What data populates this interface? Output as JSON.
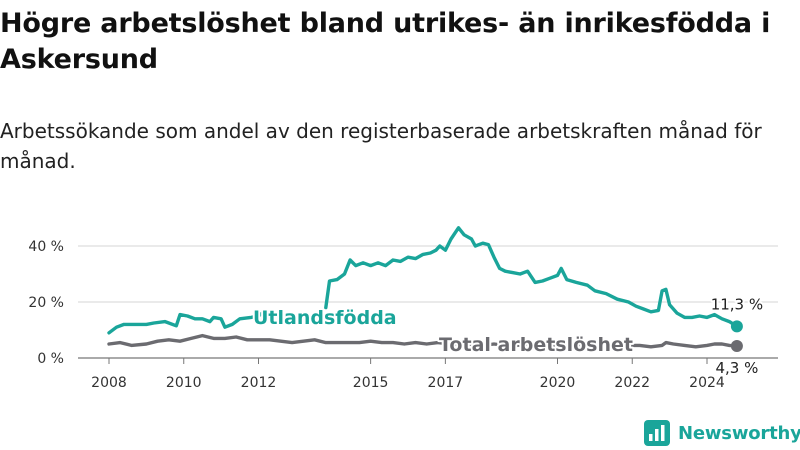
{
  "header": {
    "title": "Högre arbetslöshet bland utrikes- än inrikesfödda i Askersund",
    "subtitle": "Arbetssökande som andel av den registerbaserade arbetskraften månad för månad."
  },
  "brand": {
    "name": "Newsworthy",
    "icon": "newsworthy-logo-icon"
  },
  "chart_data": {
    "type": "line",
    "title": "Högre arbetslöshet bland utrikes- än inrikesfödda i Askersund",
    "subtitle": "Arbetssökande som andel av den registerbaserade arbetskraften månad för månad.",
    "xlabel": "",
    "ylabel": "",
    "x_ticks": [
      "2008",
      "2010",
      "2012",
      "2015",
      "2017",
      "2020",
      "2022",
      "2024"
    ],
    "y_ticks": [
      "0 %",
      "20 %",
      "40 %"
    ],
    "ylim": [
      0,
      47
    ],
    "grid": true,
    "series": [
      {
        "name": "Utlandsfödda",
        "color": "#1aa59a",
        "end_label": "11,3 %",
        "points": [
          [
            2008.0,
            9
          ],
          [
            2008.2,
            11
          ],
          [
            2008.4,
            12
          ],
          [
            2008.7,
            12
          ],
          [
            2009.0,
            12
          ],
          [
            2009.2,
            12.5
          ],
          [
            2009.5,
            13
          ],
          [
            2009.8,
            11.5
          ],
          [
            2009.9,
            15.5
          ],
          [
            2010.1,
            15
          ],
          [
            2010.3,
            14
          ],
          [
            2010.5,
            14
          ],
          [
            2010.7,
            13
          ],
          [
            2010.8,
            14.5
          ],
          [
            2011.0,
            14
          ],
          [
            2011.1,
            11
          ],
          [
            2011.3,
            12
          ],
          [
            2011.5,
            14
          ],
          [
            2011.8,
            14.5
          ],
          [
            2012.0,
            15
          ],
          [
            2012.1,
            16
          ],
          null,
          [
            2013.8,
            18
          ],
          [
            2013.9,
            27.5
          ],
          [
            2014.1,
            28
          ],
          [
            2014.3,
            30
          ],
          [
            2014.45,
            35
          ],
          [
            2014.6,
            33
          ],
          [
            2014.8,
            34
          ],
          [
            2015.0,
            33
          ],
          [
            2015.2,
            34
          ],
          [
            2015.4,
            33
          ],
          [
            2015.6,
            35
          ],
          [
            2015.8,
            34.5
          ],
          [
            2016.0,
            36
          ],
          [
            2016.2,
            35.5
          ],
          [
            2016.4,
            37
          ],
          [
            2016.6,
            37.5
          ],
          [
            2016.75,
            38.5
          ],
          [
            2016.85,
            40
          ],
          [
            2017.0,
            38.5
          ],
          [
            2017.15,
            42.5
          ],
          [
            2017.35,
            46.5
          ],
          [
            2017.5,
            44
          ],
          [
            2017.7,
            42.5
          ],
          [
            2017.8,
            40
          ],
          [
            2018.0,
            41
          ],
          [
            2018.15,
            40.5
          ],
          [
            2018.3,
            36
          ],
          [
            2018.45,
            32
          ],
          [
            2018.6,
            31
          ],
          [
            2018.8,
            30.5
          ],
          [
            2019.0,
            30
          ],
          [
            2019.2,
            31
          ],
          [
            2019.4,
            27
          ],
          [
            2019.6,
            27.5
          ],
          [
            2019.8,
            28.5
          ],
          [
            2020.0,
            29.5
          ],
          [
            2020.1,
            32
          ],
          [
            2020.25,
            28
          ],
          [
            2020.5,
            27
          ],
          [
            2020.8,
            26
          ],
          [
            2021.0,
            24
          ],
          [
            2021.3,
            23
          ],
          [
            2021.6,
            21
          ],
          [
            2021.9,
            20
          ],
          [
            2022.1,
            18.5
          ],
          [
            2022.3,
            17.5
          ],
          [
            2022.5,
            16.5
          ],
          [
            2022.7,
            17
          ],
          [
            2022.8,
            24
          ],
          [
            2022.9,
            24.5
          ],
          [
            2023.0,
            19
          ],
          [
            2023.2,
            16
          ],
          [
            2023.4,
            14.5
          ],
          [
            2023.6,
            14.5
          ],
          [
            2023.8,
            15
          ],
          [
            2024.0,
            14.5
          ],
          [
            2024.2,
            15.5
          ],
          [
            2024.4,
            14
          ],
          [
            2024.6,
            13
          ],
          [
            2024.8,
            11.3
          ]
        ]
      },
      {
        "name": "Total arbetslöshet",
        "color": "#6b6b70",
        "end_label": "4,3 %",
        "points": [
          [
            2008.0,
            5
          ],
          [
            2008.3,
            5.5
          ],
          [
            2008.6,
            4.5
          ],
          [
            2009.0,
            5
          ],
          [
            2009.3,
            6
          ],
          [
            2009.6,
            6.5
          ],
          [
            2009.9,
            6
          ],
          [
            2010.2,
            7
          ],
          [
            2010.5,
            8
          ],
          [
            2010.8,
            7
          ],
          [
            2011.1,
            7
          ],
          [
            2011.4,
            7.5
          ],
          [
            2011.7,
            6.5
          ],
          [
            2012.0,
            6.5
          ],
          [
            2012.3,
            6.5
          ],
          [
            2012.6,
            6
          ],
          [
            2012.9,
            5.5
          ],
          [
            2013.2,
            6
          ],
          [
            2013.5,
            6.5
          ],
          [
            2013.8,
            5.5
          ],
          [
            2014.1,
            5.5
          ],
          [
            2014.4,
            5.5
          ],
          [
            2014.7,
            5.5
          ],
          [
            2015.0,
            6
          ],
          [
            2015.3,
            5.5
          ],
          [
            2015.6,
            5.5
          ],
          [
            2015.9,
            5
          ],
          [
            2016.2,
            5.5
          ],
          [
            2016.5,
            5
          ],
          [
            2016.8,
            5.5
          ],
          [
            2017.1,
            5
          ],
          [
            2017.4,
            5
          ],
          [
            2017.7,
            5
          ],
          [
            2018.0,
            4.5
          ],
          [
            2018.3,
            5
          ],
          [
            2018.6,
            4.5
          ],
          [
            2018.9,
            4.5
          ],
          [
            2019.2,
            5
          ],
          [
            2019.5,
            4.5
          ],
          [
            2019.8,
            4.5
          ],
          [
            2020.1,
            5
          ],
          [
            2020.4,
            4.5
          ],
          [
            2020.7,
            5
          ],
          [
            2021.0,
            4.5
          ],
          [
            2021.3,
            4.5
          ],
          [
            2021.6,
            4.5
          ],
          [
            2021.9,
            4.5
          ],
          [
            2022.2,
            4.5
          ],
          [
            2022.5,
            4
          ],
          [
            2022.8,
            4.5
          ],
          [
            2022.9,
            5.5
          ],
          [
            2023.1,
            5
          ],
          [
            2023.4,
            4.5
          ],
          [
            2023.7,
            4
          ],
          [
            2024.0,
            4.5
          ],
          [
            2024.2,
            5
          ],
          [
            2024.4,
            5
          ],
          [
            2024.6,
            4.5
          ],
          [
            2024.8,
            4.3
          ]
        ]
      }
    ]
  }
}
